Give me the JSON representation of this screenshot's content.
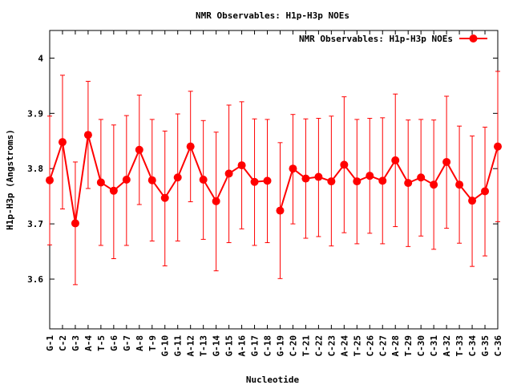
{
  "chart_data": {
    "type": "line",
    "title": "NMR Observables: H1p-H3p NOEs",
    "xlabel": "Nucleotide",
    "ylabel": "H1p-H3p (Angstroms)",
    "ylim": [
      3.51,
      4.05
    ],
    "yticks": [
      3.6,
      3.7,
      3.8,
      3.9,
      4
    ],
    "ytick_labels": [
      "3.6",
      "3.7",
      "3.8",
      "3.9",
      "4"
    ],
    "legend_position": "top-right",
    "grid": false,
    "series_color": "#ff0000",
    "categories": [
      "G-1",
      "C-2",
      "G-3",
      "A-4",
      "T-5",
      "G-6",
      "G-7",
      "A-8",
      "T-9",
      "G-10",
      "G-11",
      "A-12",
      "T-13",
      "G-14",
      "G-15",
      "A-16",
      "G-17",
      "C-18",
      "G-19",
      "C-20",
      "T-21",
      "C-22",
      "C-23",
      "A-24",
      "T-25",
      "C-26",
      "C-27",
      "A-28",
      "T-29",
      "C-30",
      "C-31",
      "A-32",
      "T-33",
      "C-34",
      "G-35",
      "C-36"
    ],
    "series": [
      {
        "name": "NMR Observables: H1p-H3p NOEs",
        "segments": [
          {
            "indices": [
              0,
              1,
              2,
              3,
              4,
              5,
              6,
              7,
              8,
              9,
              10,
              11,
              12,
              13,
              14,
              15,
              16,
              17
            ],
            "values": [
              3.779,
              3.848,
              3.701,
              3.861,
              3.775,
              3.76,
              3.78,
              3.834,
              3.779,
              3.747,
              3.784,
              3.84,
              3.78,
              3.741,
              3.791,
              3.806,
              3.776,
              3.778
            ],
            "err_low": [
              3.662,
              3.727,
              3.59,
              3.764,
              3.661,
              3.637,
              3.661,
              3.735,
              3.669,
              3.624,
              3.669,
              3.74,
              3.672,
              3.615,
              3.666,
              3.691,
              3.661,
              3.666
            ],
            "err_high": [
              3.895,
              3.969,
              3.812,
              3.958,
              3.889,
              3.879,
              3.896,
              3.933,
              3.889,
              3.868,
              3.899,
              3.94,
              3.887,
              3.866,
              3.915,
              3.921,
              3.89,
              3.889
            ]
          },
          {
            "indices": [
              18,
              19,
              20,
              21,
              22,
              23,
              24,
              25,
              26,
              27,
              28,
              29,
              30,
              31,
              32,
              33,
              34,
              35
            ],
            "values": [
              3.724,
              3.8,
              3.782,
              3.785,
              3.777,
              3.807,
              3.777,
              3.787,
              3.778,
              3.815,
              3.774,
              3.784,
              3.771,
              3.812,
              3.771,
              3.742,
              3.759,
              3.84
            ],
            "err_low": [
              3.601,
              3.7,
              3.674,
              3.677,
              3.66,
              3.684,
              3.664,
              3.683,
              3.664,
              3.695,
              3.659,
              3.678,
              3.654,
              3.692,
              3.665,
              3.623,
              3.642,
              3.704
            ],
            "err_high": [
              3.847,
              3.898,
              3.89,
              3.891,
              3.895,
              3.93,
              3.889,
              3.891,
              3.892,
              3.935,
              3.888,
              3.889,
              3.888,
              3.931,
              3.877,
              3.859,
              3.875,
              3.976
            ]
          }
        ]
      }
    ]
  }
}
